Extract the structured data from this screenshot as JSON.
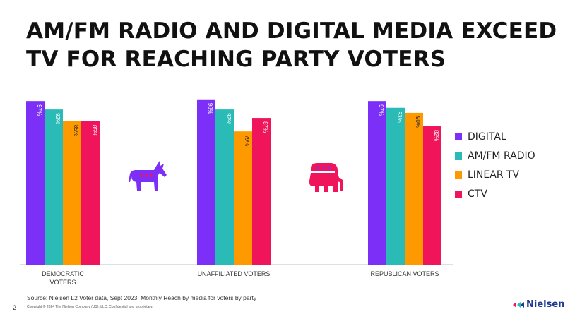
{
  "title": "AM/FM RADIO AND DIGITAL MEDIA EXCEED TV FOR REACHING PARTY VOTERS",
  "footer": {
    "source": "Source: Nielsen L2 Voter data, Sept 2023, Monthly Reach by media for voters by party",
    "page_number": "2",
    "copyright": "Copyright © 2024 The Nielsen Company (US), LLC. Confidential and proprietary.",
    "logo_text": "Nielsen"
  },
  "icons": {
    "democratic": "donkey-icon",
    "republican": "elephant-icon"
  },
  "chart_data": {
    "type": "bar",
    "categories": [
      "DEMOCRATIC VOTERS",
      "UNAFFILIATED VOTERS",
      "REPUBLICAN VOTERS"
    ],
    "series": [
      {
        "name": "DIGITAL",
        "color": "#7b2ff7",
        "values": [
          97,
          98,
          97
        ],
        "labels": [
          "97%",
          "98%",
          "97%"
        ]
      },
      {
        "name": "AM/FM RADIO",
        "color": "#2bbbb6",
        "values": [
          92,
          92,
          93
        ],
        "labels": [
          "92%",
          "92%",
          "93%"
        ]
      },
      {
        "name": "LINEAR TV",
        "color": "#ff9900",
        "values": [
          85,
          79,
          90
        ],
        "labels": [
          "85%",
          "79%",
          "90%"
        ]
      },
      {
        "name": "CTV",
        "color": "#f0155a",
        "values": [
          85,
          87,
          82
        ],
        "labels": [
          "85%",
          "87%",
          "82%"
        ]
      }
    ],
    "ylim": [
      0,
      100
    ],
    "legend_position": "right",
    "grid": false
  }
}
